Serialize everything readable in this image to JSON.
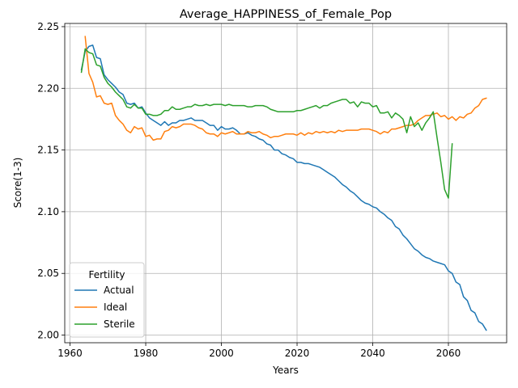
{
  "chart_data": {
    "type": "line",
    "title": "Average_HAPPINESS_of_Female_Pop",
    "xlabel": "Years",
    "ylabel": "Score(1-3)",
    "xlim": [
      1958.6,
      2075.4
    ],
    "ylim": [
      1.9938,
      2.2526
    ],
    "xticks": [
      1960,
      1980,
      2000,
      2020,
      2040,
      2060
    ],
    "yticks": [
      2.0,
      2.05,
      2.1,
      2.15,
      2.2,
      2.25
    ],
    "ytick_labels": [
      "2.00",
      "2.05",
      "2.10",
      "2.15",
      "2.20",
      "2.25"
    ],
    "grid": true,
    "legend": {
      "title": "Fertility",
      "placement": "lower-left"
    },
    "series": [
      {
        "name": "Actual",
        "color": "#1f77b4",
        "x": [
          1963,
          1964,
          1965,
          1966,
          1967,
          1968,
          1969,
          1970,
          1971,
          1972,
          1973,
          1974,
          1975,
          1976,
          1977,
          1978,
          1979,
          1980,
          1981,
          1982,
          1983,
          1984,
          1985,
          1986,
          1987,
          1988,
          1989,
          1990,
          1991,
          1992,
          1993,
          1994,
          1995,
          1996,
          1997,
          1998,
          1999,
          2000,
          2001,
          2002,
          2003,
          2004,
          2005,
          2006,
          2007,
          2008,
          2009,
          2010,
          2011,
          2012,
          2013,
          2014,
          2015,
          2016,
          2017,
          2018,
          2019,
          2020,
          2021,
          2022,
          2023,
          2024,
          2025,
          2026,
          2027,
          2028,
          2029,
          2030,
          2031,
          2032,
          2033,
          2034,
          2035,
          2036,
          2037,
          2038,
          2039,
          2040,
          2041,
          2042,
          2043,
          2044,
          2045,
          2046,
          2047,
          2048,
          2049,
          2050,
          2051,
          2052,
          2053,
          2054,
          2055,
          2056,
          2057,
          2058,
          2059,
          2060,
          2061,
          2062,
          2063,
          2064,
          2065,
          2066,
          2067,
          2068,
          2069,
          2070
        ],
        "values": [
          2.215,
          2.23,
          2.234,
          2.235,
          2.225,
          2.224,
          2.211,
          2.207,
          2.204,
          2.201,
          2.197,
          2.195,
          2.188,
          2.187,
          2.188,
          2.184,
          2.185,
          2.18,
          2.176,
          2.174,
          2.172,
          2.17,
          2.173,
          2.17,
          2.172,
          2.172,
          2.174,
          2.174,
          2.175,
          2.176,
          2.174,
          2.174,
          2.174,
          2.172,
          2.17,
          2.17,
          2.166,
          2.169,
          2.167,
          2.167,
          2.168,
          2.166,
          2.163,
          2.163,
          2.164,
          2.162,
          2.161,
          2.159,
          2.158,
          2.155,
          2.154,
          2.15,
          2.15,
          2.147,
          2.146,
          2.144,
          2.143,
          2.14,
          2.14,
          2.139,
          2.139,
          2.138,
          2.137,
          2.136,
          2.134,
          2.132,
          2.13,
          2.128,
          2.125,
          2.122,
          2.12,
          2.117,
          2.115,
          2.112,
          2.109,
          2.107,
          2.106,
          2.104,
          2.103,
          2.1,
          2.098,
          2.095,
          2.093,
          2.088,
          2.086,
          2.081,
          2.078,
          2.074,
          2.07,
          2.068,
          2.065,
          2.063,
          2.062,
          2.06,
          2.059,
          2.058,
          2.057,
          2.052,
          2.05,
          2.043,
          2.041,
          2.031,
          2.028,
          2.02,
          2.018,
          2.011,
          2.009,
          2.004
        ]
      },
      {
        "name": "Ideal",
        "color": "#ff7f0e",
        "x": [
          1964,
          1965,
          1966,
          1967,
          1968,
          1969,
          1970,
          1971,
          1972,
          1973,
          1974,
          1975,
          1976,
          1977,
          1978,
          1979,
          1980,
          1981,
          1982,
          1983,
          1984,
          1985,
          1986,
          1987,
          1988,
          1989,
          1990,
          1991,
          1992,
          1993,
          1994,
          1995,
          1996,
          1997,
          1998,
          1999,
          2000,
          2001,
          2002,
          2003,
          2004,
          2005,
          2006,
          2007,
          2008,
          2009,
          2010,
          2011,
          2012,
          2013,
          2014,
          2015,
          2016,
          2017,
          2018,
          2019,
          2020,
          2021,
          2022,
          2023,
          2024,
          2025,
          2026,
          2027,
          2028,
          2029,
          2030,
          2031,
          2032,
          2033,
          2034,
          2035,
          2036,
          2037,
          2038,
          2039,
          2040,
          2041,
          2042,
          2043,
          2044,
          2045,
          2046,
          2047,
          2048,
          2049,
          2050,
          2051,
          2052,
          2053,
          2054,
          2055,
          2056,
          2057,
          2058,
          2059,
          2060,
          2061,
          2062,
          2063,
          2064,
          2065,
          2066,
          2067,
          2068,
          2069,
          2070
        ],
        "values": [
          2.242,
          2.212,
          2.205,
          2.193,
          2.194,
          2.188,
          2.187,
          2.188,
          2.178,
          2.174,
          2.171,
          2.166,
          2.164,
          2.169,
          2.167,
          2.168,
          2.161,
          2.162,
          2.158,
          2.159,
          2.159,
          2.165,
          2.166,
          2.169,
          2.168,
          2.169,
          2.171,
          2.171,
          2.171,
          2.17,
          2.168,
          2.167,
          2.164,
          2.163,
          2.163,
          2.161,
          2.164,
          2.163,
          2.164,
          2.165,
          2.163,
          2.163,
          2.163,
          2.165,
          2.164,
          2.164,
          2.165,
          2.163,
          2.162,
          2.16,
          2.161,
          2.161,
          2.162,
          2.163,
          2.163,
          2.163,
          2.162,
          2.164,
          2.162,
          2.164,
          2.163,
          2.165,
          2.164,
          2.165,
          2.164,
          2.165,
          2.164,
          2.166,
          2.165,
          2.166,
          2.166,
          2.166,
          2.166,
          2.167,
          2.167,
          2.167,
          2.166,
          2.165,
          2.163,
          2.165,
          2.164,
          2.167,
          2.167,
          2.168,
          2.169,
          2.17,
          2.17,
          2.171,
          2.174,
          2.176,
          2.178,
          2.178,
          2.179,
          2.18,
          2.177,
          2.178,
          2.175,
          2.177,
          2.174,
          2.177,
          2.176,
          2.179,
          2.18,
          2.184,
          2.186,
          2.191,
          2.192
        ]
      },
      {
        "name": "Sterile",
        "color": "#2ca02c",
        "x": [
          1963,
          1964,
          1965,
          1966,
          1967,
          1968,
          1969,
          1970,
          1971,
          1972,
          1973,
          1974,
          1975,
          1976,
          1977,
          1978,
          1979,
          1980,
          1981,
          1982,
          1983,
          1984,
          1985,
          1986,
          1987,
          1988,
          1989,
          1990,
          1991,
          1992,
          1993,
          1994,
          1995,
          1996,
          1997,
          1998,
          1999,
          2000,
          2001,
          2002,
          2003,
          2004,
          2005,
          2006,
          2007,
          2008,
          2009,
          2010,
          2011,
          2012,
          2013,
          2014,
          2015,
          2016,
          2017,
          2018,
          2019,
          2020,
          2021,
          2022,
          2023,
          2024,
          2025,
          2026,
          2027,
          2028,
          2029,
          2030,
          2031,
          2032,
          2033,
          2034,
          2035,
          2036,
          2037,
          2038,
          2039,
          2040,
          2041,
          2042,
          2043,
          2044,
          2045,
          2046,
          2047,
          2048,
          2049,
          2050,
          2051,
          2052,
          2053,
          2054,
          2055,
          2056,
          2057,
          2058,
          2059,
          2060,
          2061
        ],
        "values": [
          2.213,
          2.232,
          2.229,
          2.228,
          2.219,
          2.218,
          2.209,
          2.204,
          2.201,
          2.197,
          2.194,
          2.191,
          2.185,
          2.184,
          2.187,
          2.184,
          2.184,
          2.179,
          2.179,
          2.178,
          2.178,
          2.179,
          2.182,
          2.182,
          2.185,
          2.183,
          2.183,
          2.184,
          2.185,
          2.185,
          2.187,
          2.186,
          2.186,
          2.187,
          2.186,
          2.187,
          2.187,
          2.187,
          2.186,
          2.187,
          2.186,
          2.186,
          2.186,
          2.186,
          2.185,
          2.185,
          2.186,
          2.186,
          2.186,
          2.185,
          2.183,
          2.182,
          2.181,
          2.181,
          2.181,
          2.181,
          2.181,
          2.182,
          2.182,
          2.183,
          2.184,
          2.185,
          2.186,
          2.184,
          2.186,
          2.186,
          2.188,
          2.189,
          2.19,
          2.191,
          2.191,
          2.188,
          2.189,
          2.185,
          2.189,
          2.188,
          2.188,
          2.185,
          2.186,
          2.18,
          2.18,
          2.181,
          2.176,
          2.18,
          2.178,
          2.175,
          2.164,
          2.177,
          2.169,
          2.172,
          2.166,
          2.172,
          2.176,
          2.181,
          2.16,
          2.14,
          2.118,
          2.111,
          2.155
        ]
      }
    ]
  }
}
